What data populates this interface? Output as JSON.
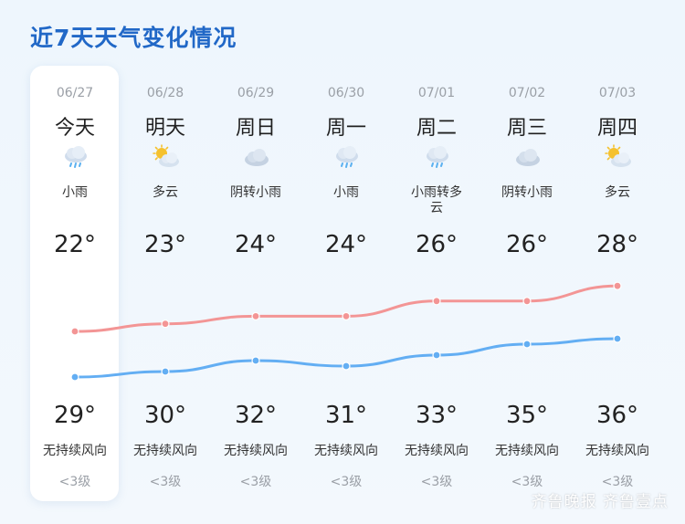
{
  "title": "近7天天气变化情况",
  "days": [
    {
      "date": "06/27",
      "name": "今天",
      "weather": "小雨",
      "icon": "rain-icon",
      "tempA": "22°",
      "tempB": "29°",
      "wind": "无持续风向",
      "level": "<3级"
    },
    {
      "date": "06/28",
      "name": "明天",
      "weather": "多云",
      "icon": "partly-cloudy-icon",
      "tempA": "23°",
      "tempB": "30°",
      "wind": "无持续风向",
      "level": "<3级"
    },
    {
      "date": "06/29",
      "name": "周日",
      "weather": "阴转小雨",
      "icon": "overcast-icon",
      "tempA": "24°",
      "tempB": "32°",
      "wind": "无持续风向",
      "level": "<3级"
    },
    {
      "date": "06/30",
      "name": "周一",
      "weather": "小雨",
      "icon": "rain-icon",
      "tempA": "24°",
      "tempB": "31°",
      "wind": "无持续风向",
      "level": "<3级"
    },
    {
      "date": "07/01",
      "name": "周二",
      "weather": "小雨转多云",
      "icon": "rain-icon",
      "tempA": "26°",
      "tempB": "33°",
      "wind": "无持续风向",
      "level": "<3级"
    },
    {
      "date": "07/02",
      "name": "周三",
      "weather": "阴转小雨",
      "icon": "overcast-icon",
      "tempA": "26°",
      "tempB": "35°",
      "wind": "无持续风向",
      "level": "<3级"
    },
    {
      "date": "07/03",
      "name": "周四",
      "weather": "多云",
      "icon": "partly-cloudy-icon",
      "tempA": "28°",
      "tempB": "36°",
      "wind": "无持续风向",
      "level": "<3级"
    }
  ],
  "colors": {
    "title": "#2168c7",
    "upper_line": "#f39595",
    "lower_line": "#63aef3",
    "rain_drop": "#5ab0f0",
    "sun": "#f5c12e"
  },
  "watermark": "齐鲁晚报 齐鲁壹点"
}
